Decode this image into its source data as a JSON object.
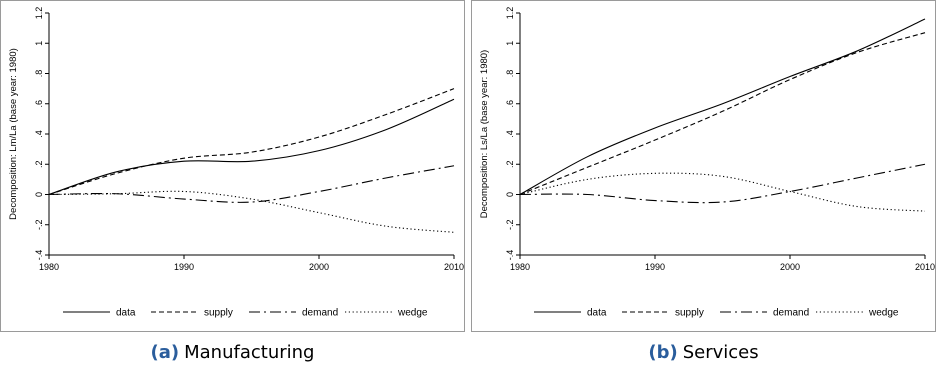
{
  "chart_data": [
    {
      "type": "line",
      "panel_tag": "(a)",
      "caption": "Manufacturing",
      "ylabel": "Decomposition: Lm/La (base year: 1980)",
      "xlabel": "",
      "xlim": [
        1980,
        2010
      ],
      "ylim": [
        -0.4,
        1.2
      ],
      "xticks": [
        1980,
        1990,
        2000,
        2010
      ],
      "yticks": [
        -0.4,
        -0.2,
        0,
        0.2,
        0.4,
        0.6,
        0.8,
        1,
        1.2
      ],
      "ytick_labels": [
        "-.4",
        "-.2",
        "0",
        ".2",
        ".4",
        ".6",
        ".8",
        "1",
        "1.2"
      ],
      "grid": false,
      "legend_position": "bottom",
      "x": [
        1980,
        1985,
        1990,
        1995,
        2000,
        2005,
        2010
      ],
      "series": [
        {
          "name": "data",
          "style": "solid",
          "values": [
            0,
            0.15,
            0.22,
            0.22,
            0.29,
            0.43,
            0.63
          ]
        },
        {
          "name": "supply",
          "style": "dash",
          "values": [
            0,
            0.14,
            0.24,
            0.28,
            0.38,
            0.53,
            0.7
          ]
        },
        {
          "name": "demand",
          "style": "longdash",
          "values": [
            0,
            0.005,
            -0.03,
            -0.05,
            0.02,
            0.11,
            0.19
          ]
        },
        {
          "name": "wedge",
          "style": "dot",
          "values": [
            0,
            0.005,
            0.02,
            -0.03,
            -0.12,
            -0.21,
            -0.25
          ]
        }
      ]
    },
    {
      "type": "line",
      "panel_tag": "(b)",
      "caption": "Services",
      "ylabel": "Decomposition: Ls/La (base year: 1980)",
      "xlabel": "",
      "xlim": [
        1980,
        2010
      ],
      "ylim": [
        -0.4,
        1.2
      ],
      "xticks": [
        1980,
        1990,
        2000,
        2010
      ],
      "yticks": [
        -0.4,
        -0.2,
        0,
        0.2,
        0.4,
        0.6,
        0.8,
        1,
        1.2
      ],
      "ytick_labels": [
        "-.4",
        "-.2",
        "0",
        ".2",
        ".4",
        ".6",
        ".8",
        "1",
        "1.2"
      ],
      "grid": false,
      "legend_position": "bottom",
      "x": [
        1980,
        1985,
        1990,
        1995,
        2000,
        2005,
        2010
      ],
      "series": [
        {
          "name": "data",
          "style": "solid",
          "values": [
            0,
            0.25,
            0.44,
            0.6,
            0.78,
            0.95,
            1.16
          ]
        },
        {
          "name": "supply",
          "style": "dash",
          "values": [
            0,
            0.18,
            0.36,
            0.55,
            0.76,
            0.94,
            1.07
          ]
        },
        {
          "name": "demand",
          "style": "longdash",
          "values": [
            0,
            0,
            -0.04,
            -0.05,
            0.02,
            0.11,
            0.2
          ]
        },
        {
          "name": "wedge",
          "style": "dot",
          "values": [
            0,
            0.1,
            0.14,
            0.12,
            0.02,
            -0.08,
            -0.11
          ]
        }
      ]
    }
  ]
}
